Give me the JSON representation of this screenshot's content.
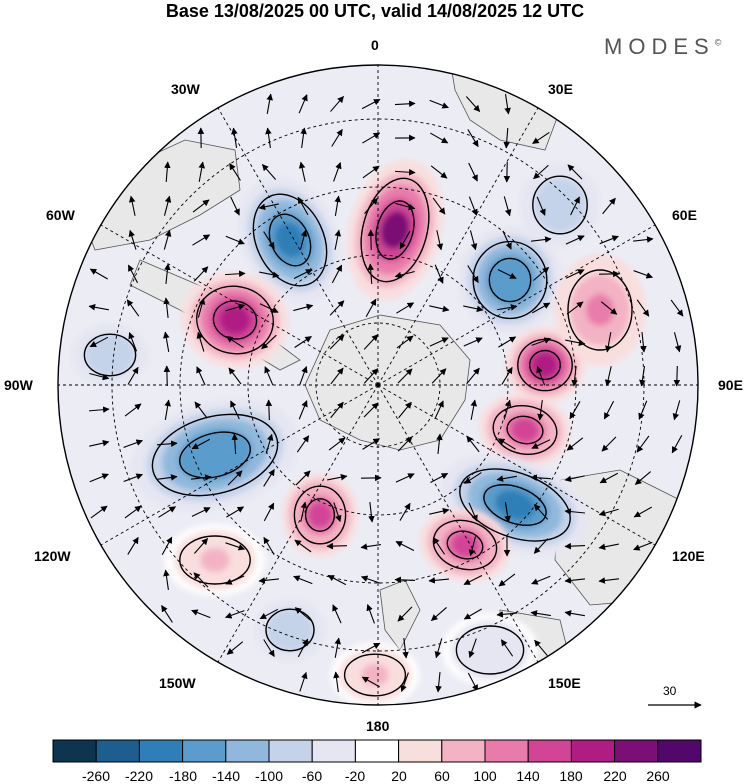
{
  "title": "Base 13/08/2025 00 UTC, valid 14/08/2025 12 UTC",
  "logo": "MODES",
  "logo_mark": "©",
  "longitude_labels": {
    "top": "0",
    "top_left": "30W",
    "top_right": "30E",
    "upper_left": "60W",
    "upper_right": "60E",
    "left": "90W",
    "right": "90E",
    "lower_left": "120W",
    "lower_right": "120E",
    "bottom_left": "150W",
    "bottom_right": "150E",
    "bottom": "180"
  },
  "vector_reference": "30",
  "colorbar": {
    "ticks": [
      "-260",
      "-220",
      "-180",
      "-140",
      "-100",
      "-60",
      "-20",
      "20",
      "60",
      "100",
      "140",
      "180",
      "220",
      "260"
    ],
    "colors": [
      "#0d3550",
      "#1c5f8f",
      "#2e7fb8",
      "#5a9ccb",
      "#8fb8dc",
      "#c5d3ea",
      "#e6e6f2",
      "#ffffff",
      "#f9dede",
      "#f3b3c4",
      "#e87bab",
      "#d24596",
      "#b01c84",
      "#7c0f75",
      "#52086b"
    ]
  },
  "anomalies": [
    {
      "sign": "negative",
      "value": -220
    },
    {
      "sign": "positive",
      "value": 220
    },
    {
      "sign": "negative",
      "value": -180
    },
    {
      "sign": "positive",
      "value": 180
    },
    {
      "sign": "positive",
      "value": 180
    },
    {
      "sign": "negative",
      "value": -100
    },
    {
      "sign": "positive",
      "value": 140
    },
    {
      "sign": "negative",
      "value": -220
    },
    {
      "sign": "negative",
      "value": -180
    },
    {
      "sign": "positive",
      "value": 140
    },
    {
      "sign": "positive",
      "value": 140
    },
    {
      "sign": "negative",
      "value": -100
    },
    {
      "sign": "positive",
      "value": 60
    },
    {
      "sign": "negative",
      "value": -60
    },
    {
      "sign": "positive",
      "value": 60
    },
    {
      "sign": "negative",
      "value": -100
    },
    {
      "sign": "positive",
      "value": 100
    }
  ]
}
